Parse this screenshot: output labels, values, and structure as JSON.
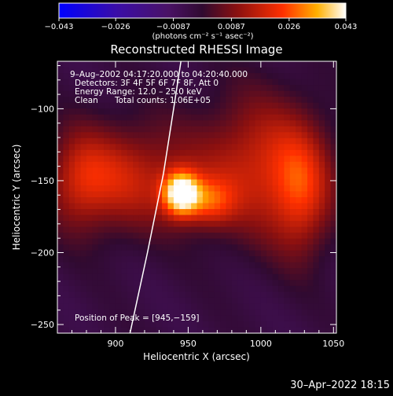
{
  "chart_data": {
    "type": "heatmap",
    "title": "Reconstructed RHESSI Image",
    "xlabel": "Heliocentric X (arcsec)",
    "ylabel": "Heliocentric Y (arcsec)",
    "xlim": [
      860,
      1052
    ],
    "ylim": [
      -256,
      -67
    ],
    "x_ticks": [
      900,
      950,
      1000,
      1050
    ],
    "y_ticks": [
      -100,
      -150,
      -200,
      -250
    ],
    "colorbar": {
      "range": [
        -0.043,
        0.043
      ],
      "tick_values": [
        -0.043,
        -0.026,
        -0.0087,
        0.0087,
        0.026,
        0.043
      ],
      "tick_labels": [
        "−0.043",
        "−0.026",
        "−0.0087",
        "0.0087",
        "0.026",
        "0.043"
      ],
      "unit_label": "(photons cm⁻² s⁻¹ asec⁻²)",
      "colormap": "blue-purple-red-yellow-white"
    },
    "annotations": {
      "time_range": "9–Aug–2002 04:17:20.000 to 04:20:40.000",
      "detectors": "Detectors: 3F 4F 5F 6F 7F 8F, Att 0",
      "energy_range": "Energy Range: 12.0 – 25.0 keV",
      "clean_label": "Clean",
      "total_counts": "Total counts: 1.06E+05",
      "peak_position": "Position of Peak = [945,−159]"
    },
    "peak": {
      "x": 945,
      "y": -159
    },
    "limb_curve": [
      [
        910,
        -256
      ],
      [
        922,
        -200
      ],
      [
        933,
        -145
      ],
      [
        940,
        -100
      ],
      [
        945,
        -67
      ]
    ],
    "sources": [
      {
        "x": 945,
        "y": -159,
        "sx": 9,
        "sy": 11,
        "amp": 1.0
      },
      {
        "x": 965,
        "y": -165,
        "sx": 12,
        "sy": 12,
        "amp": 0.45
      },
      {
        "x": 1000,
        "y": -140,
        "sx": 30,
        "sy": 34,
        "amp": 0.5
      },
      {
        "x": 1028,
        "y": -160,
        "sx": 14,
        "sy": 30,
        "amp": 0.42
      },
      {
        "x": 910,
        "y": -148,
        "sx": 30,
        "sy": 26,
        "amp": 0.45
      },
      {
        "x": 875,
        "y": -150,
        "sx": 16,
        "sy": 24,
        "amp": 0.35
      }
    ]
  },
  "footer": {
    "date": "30–Apr–2022 18:15"
  }
}
